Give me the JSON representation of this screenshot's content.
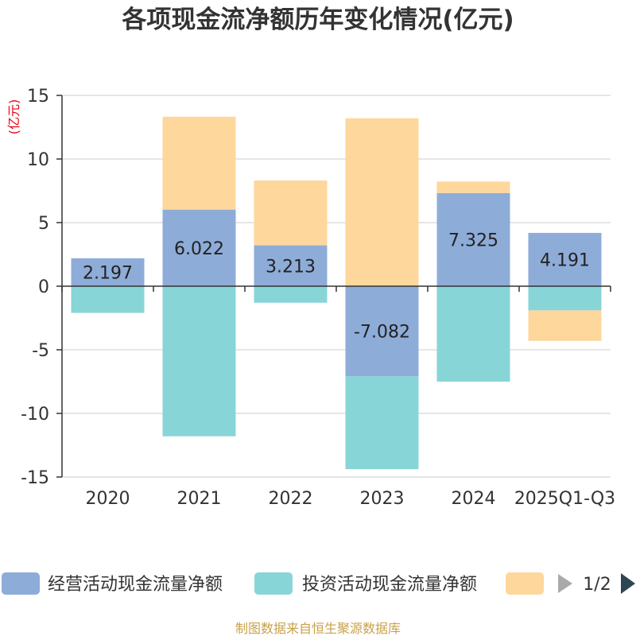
{
  "chart_data": {
    "type": "bar",
    "stacked": true,
    "title": "各项现金流净额历年变化情况(亿元)",
    "ylabel": "(亿元)",
    "categories": [
      "2020",
      "2021",
      "2022",
      "2023",
      "2024",
      "2025Q1-Q3"
    ],
    "ylim": [
      -15,
      15
    ],
    "yticks": [
      15,
      10,
      5,
      0,
      -5,
      -10,
      -15
    ],
    "series": [
      {
        "name": "经营活动现金流量净额",
        "color": "#8eacd8",
        "values": [
          2.197,
          6.022,
          3.213,
          -7.082,
          7.325,
          4.191
        ],
        "labels": [
          "2.197",
          "6.022",
          "3.213",
          "-7.082",
          "7.325",
          "4.191"
        ]
      },
      {
        "name": "投资活动现金流量净额",
        "color": "#88d5d8",
        "values": [
          -2.1,
          -11.8,
          -1.3,
          -7.3,
          -7.5,
          -1.9
        ]
      },
      {
        "name": "",
        "color": "#fdd79b",
        "values": [
          0,
          7.3,
          5.1,
          13.2,
          0.9,
          -2.4
        ]
      }
    ],
    "legend": {
      "position": "bottom",
      "page": "1/2"
    }
  },
  "footer": "制图数据来自恒生聚源数据库"
}
